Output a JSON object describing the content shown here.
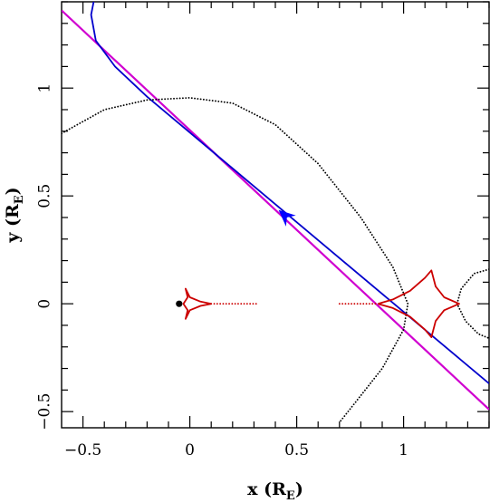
{
  "chart_data": {
    "type": "line",
    "xlabel": {
      "main": "x (R",
      "sub": "E",
      "close": ")"
    },
    "ylabel": {
      "main": "y (R",
      "sub": "E",
      "close": ")"
    },
    "xlim": [
      -0.6,
      1.4
    ],
    "ylim": [
      -0.575,
      1.4
    ],
    "xticks": [
      {
        "value": -0.5,
        "label": "−0.5"
      },
      {
        "value": 0,
        "label": "0"
      },
      {
        "value": 0.5,
        "label": "0.5"
      },
      {
        "value": 1,
        "label": "1"
      }
    ],
    "yticks": [
      {
        "value": -0.5,
        "label": "−0.5"
      },
      {
        "value": 0,
        "label": "0"
      },
      {
        "value": 0.5,
        "label": "0.5"
      },
      {
        "value": 1,
        "label": "1"
      }
    ],
    "minor_tick_step": 0.1,
    "series": [
      {
        "style": "straight-line",
        "color": "#d000d0",
        "points": [
          [
            -0.6,
            1.36
          ],
          [
            1.4,
            -0.49
          ]
        ]
      },
      {
        "style": "line",
        "color": "#0000cc",
        "points": [
          [
            -0.45,
            1.4
          ],
          [
            -0.462,
            1.34
          ],
          [
            -0.44,
            1.22
          ],
          [
            -0.35,
            1.1
          ],
          [
            -0.2,
            0.96
          ],
          [
            1.4,
            -0.37
          ]
        ]
      },
      {
        "style": "arrow",
        "color": "#0000ff",
        "tip": [
          0.415,
          0.435
        ],
        "from": [
          0.5,
          0.36
        ]
      },
      {
        "style": "dotted",
        "color": "#000000",
        "points": [
          [
            -0.6,
            0.79
          ],
          [
            -0.4,
            0.9
          ],
          [
            -0.2,
            0.945
          ],
          [
            0.0,
            0.955
          ],
          [
            0.2,
            0.93
          ],
          [
            0.4,
            0.83
          ],
          [
            0.6,
            0.65
          ],
          [
            0.8,
            0.4
          ],
          [
            0.95,
            0.17
          ],
          [
            1.02,
            0.0
          ],
          [
            1.0,
            -0.12
          ],
          [
            0.9,
            -0.3
          ],
          [
            0.78,
            -0.45
          ],
          [
            0.7,
            -0.55
          ]
        ]
      },
      {
        "style": "dotted",
        "color": "#000000",
        "points": [
          [
            1.4,
            0.16
          ],
          [
            1.33,
            0.14
          ],
          [
            1.27,
            0.07
          ],
          [
            1.25,
            0.0
          ],
          [
            1.29,
            -0.08
          ],
          [
            1.35,
            -0.14
          ],
          [
            1.4,
            -0.16
          ]
        ]
      },
      {
        "style": "line",
        "color": "#cc0000",
        "points": [
          [
            0.88,
            0.0
          ],
          [
            0.95,
            0.02
          ],
          [
            1.03,
            0.06
          ],
          [
            1.1,
            0.12
          ],
          [
            1.13,
            0.155
          ],
          [
            1.15,
            0.08
          ],
          [
            1.19,
            0.03
          ],
          [
            1.26,
            0.0
          ],
          [
            1.19,
            -0.03
          ],
          [
            1.15,
            -0.08
          ],
          [
            1.13,
            -0.155
          ],
          [
            1.1,
            -0.12
          ],
          [
            1.03,
            -0.06
          ],
          [
            0.95,
            -0.02
          ],
          [
            0.88,
            0.0
          ]
        ]
      },
      {
        "style": "dotted",
        "color": "#cc0000",
        "points": [
          [
            0.7,
            0.0
          ],
          [
            0.88,
            0.0
          ]
        ]
      },
      {
        "style": "line",
        "color": "#cc0000",
        "points": [
          [
            0.1,
            0.0
          ],
          [
            0.05,
            -0.01
          ],
          [
            0.0,
            -0.03
          ],
          [
            -0.02,
            -0.07
          ],
          [
            -0.01,
            -0.03
          ],
          [
            -0.03,
            0.0
          ],
          [
            -0.01,
            0.03
          ],
          [
            -0.02,
            0.07
          ],
          [
            0.0,
            0.03
          ],
          [
            0.05,
            0.01
          ],
          [
            0.1,
            0.0
          ]
        ]
      },
      {
        "style": "dotted",
        "color": "#cc0000",
        "points": [
          [
            0.1,
            0.0
          ],
          [
            0.31,
            0.0
          ]
        ]
      },
      {
        "style": "marker",
        "color": "#000000",
        "points": [
          [
            -0.05,
            0.0
          ]
        ]
      }
    ]
  }
}
